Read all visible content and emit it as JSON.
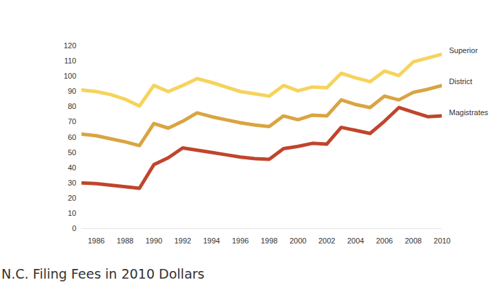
{
  "chart_data": {
    "type": "line",
    "title": "N.C. Filing Fees in 2010 Dollars",
    "x": [
      1985,
      1986,
      1987,
      1988,
      1989,
      1990,
      1991,
      1992,
      1993,
      1994,
      1995,
      1996,
      1997,
      1998,
      1999,
      2000,
      2001,
      2002,
      2003,
      2004,
      2005,
      2006,
      2007,
      2008,
      2009,
      2010
    ],
    "xlim": [
      1985,
      2010
    ],
    "xticks": [
      1986,
      1988,
      1990,
      1992,
      1994,
      1996,
      1998,
      2000,
      2002,
      2004,
      2006,
      2008,
      2010
    ],
    "ylim": [
      0,
      120
    ],
    "yticks": [
      0,
      10,
      20,
      30,
      40,
      50,
      60,
      70,
      80,
      90,
      100,
      110,
      120
    ],
    "grid": false,
    "series": [
      {
        "name": "Superior",
        "color": "#f6d35b",
        "values": [
          91,
          90,
          88,
          85,
          80.5,
          94,
          90,
          94,
          98.5,
          96,
          93,
          90,
          88.5,
          87,
          94,
          90.5,
          93,
          92.5,
          102,
          99,
          96.5,
          103.5,
          100.5,
          109.5,
          112,
          114.5
        ]
      },
      {
        "name": "District",
        "color": "#d9a441",
        "values": [
          62,
          61,
          59,
          57,
          54.5,
          69,
          66,
          70.5,
          76,
          73.5,
          71.5,
          69.5,
          68,
          67,
          74,
          71.5,
          74.5,
          74,
          84.5,
          81.5,
          79.5,
          87,
          84.5,
          89.5,
          91.5,
          94
        ]
      },
      {
        "name": "Magistrates",
        "color": "#c0452c",
        "values": [
          30,
          29.5,
          28.5,
          27.5,
          26.5,
          42,
          46.5,
          53,
          51.5,
          50,
          48.5,
          47,
          46,
          45.5,
          52.5,
          54,
          56,
          55.5,
          66.5,
          64.5,
          62.5,
          70.5,
          79.5,
          76.5,
          73.5,
          74
        ]
      }
    ]
  }
}
